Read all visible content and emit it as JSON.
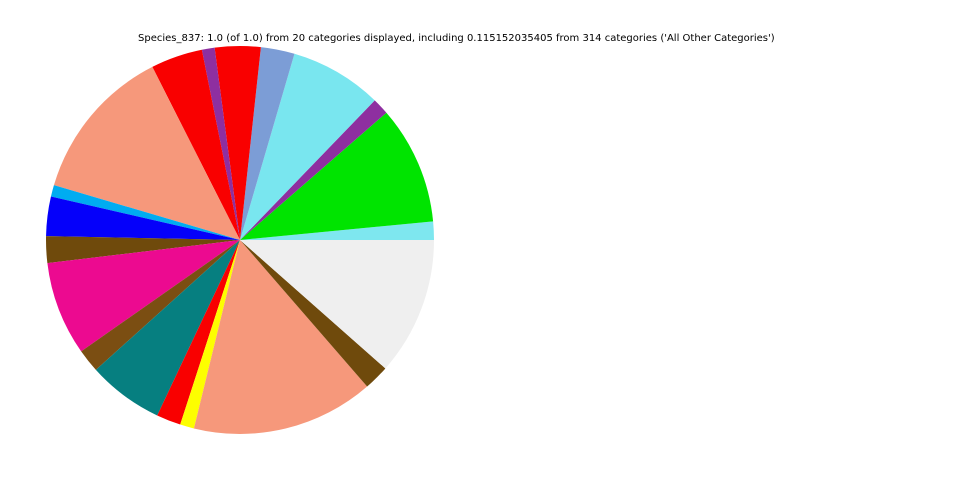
{
  "figure": {
    "background": "#ffffff",
    "title": "Species_837: 1.0 (of 1.0) from 20 categories displayed, including 0.115152035405 from 314 categories ('All Other Categories')"
  },
  "chart_data": {
    "type": "pie",
    "title": "Species_837: 1.0 (of 1.0) from 20 categories displayed, including 0.115152035405 from 314 categories ('All Other Categories')",
    "total": 1.0,
    "displayed_categories": 20,
    "all_other_categories_count": 314,
    "all_other_categories_fraction": 0.115152035405,
    "start_angle_deg": 0,
    "direction": "counterclockwise",
    "legend": "none",
    "segments": [
      {
        "label": "",
        "fraction": 0.0153,
        "color": "#7EE7EF"
      },
      {
        "label": "",
        "fraction": 0.0986,
        "color": "#00E400"
      },
      {
        "label": "",
        "fraction": 0.0139,
        "color": "#8E2FA0"
      },
      {
        "label": "",
        "fraction": 0.0769,
        "color": "#79E6EF"
      },
      {
        "label": "",
        "fraction": 0.0281,
        "color": "#7C9DD6"
      },
      {
        "label": "",
        "fraction": 0.0381,
        "color": "#F90000"
      },
      {
        "label": "",
        "fraction": 0.0106,
        "color": "#8E2FA0"
      },
      {
        "label": "",
        "fraction": 0.0431,
        "color": "#F90000"
      },
      {
        "label": "",
        "fraction": 0.1297,
        "color": "#F6987B"
      },
      {
        "label": "",
        "fraction": 0.0097,
        "color": "#00ACF1"
      },
      {
        "label": "",
        "fraction": 0.0328,
        "color": "#0500FA"
      },
      {
        "label": "",
        "fraction": 0.0222,
        "color": "#6F4A0C"
      },
      {
        "label": "",
        "fraction": 0.0783,
        "color": "#EC0A90"
      },
      {
        "label": "",
        "fraction": 0.0194,
        "color": "#7B4E12"
      },
      {
        "label": "",
        "fraction": 0.0631,
        "color": "#067F80"
      },
      {
        "label": "",
        "fraction": 0.0203,
        "color": "#F90000"
      },
      {
        "label": "",
        "fraction": 0.0117,
        "color": "#FDFE00"
      },
      {
        "label": "",
        "fraction": 0.1519,
        "color": "#F6987B"
      },
      {
        "label": "",
        "fraction": 0.0211,
        "color": "#6F4A0C"
      },
      {
        "label": "All Other Categories",
        "fraction": 0.115152035405,
        "color": "#EFEFEF"
      }
    ]
  }
}
